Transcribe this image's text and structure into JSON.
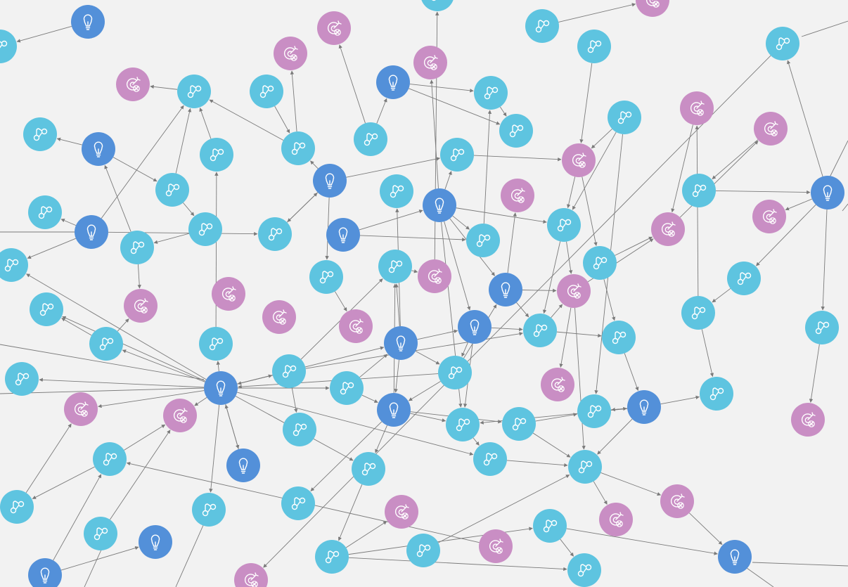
{
  "colors": {
    "background": "#f2f2f2",
    "edge": "#7a7a7a",
    "idea": "#5390d9",
    "connection": "#5ec4e0",
    "blocked": "#c98ec4",
    "icon": "#ffffff"
  },
  "node_types": {
    "idea": {
      "icon": "lightbulb-icon"
    },
    "connection": {
      "icon": "share-nodes-icon"
    },
    "blocked": {
      "icon": "target-x-icon"
    }
  },
  "node_count": {
    "idea": 21,
    "connection": 73,
    "blocked": 27
  }
}
